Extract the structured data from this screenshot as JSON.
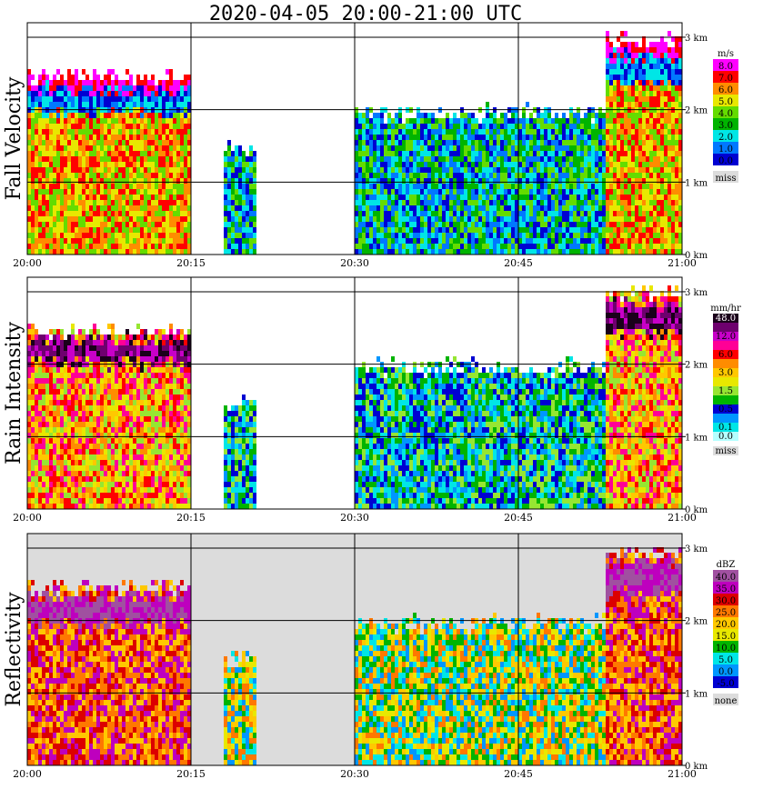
{
  "title": "2020-04-05   20:00-21:00 UTC",
  "chart_data": [
    {
      "type": "heatmap",
      "panel": "Fall Velocity",
      "x_tick_labels": [
        "20:00",
        "20:15",
        "20:30",
        "20:45",
        "21:00"
      ],
      "y_tick_labels": [
        "0 km",
        "1 km",
        "2 km",
        "3 km"
      ],
      "xlim": [
        "20:00",
        "21:00"
      ],
      "ylim_km": [
        0,
        3.2
      ],
      "grid": true,
      "legend": {
        "title": "m/s",
        "placement": "right",
        "entries": [
          {
            "label": "8.0",
            "color": "#ff00ff"
          },
          {
            "label": "7.0",
            "color": "#ff0000"
          },
          {
            "label": "6.0",
            "color": "#ff8c00"
          },
          {
            "label": "5.0",
            "color": "#e8e800"
          },
          {
            "label": "4.0",
            "color": "#64dc00"
          },
          {
            "label": "3.0",
            "color": "#00b400"
          },
          {
            "label": "2.0",
            "color": "#00e6e6"
          },
          {
            "label": "1.0",
            "color": "#0078ff"
          },
          {
            "label": "0.0",
            "color": "#0000d2"
          },
          {
            "label": "miss",
            "color": "#dcdcdc"
          }
        ]
      },
      "echo_segments": [
        {
          "start": "20:00",
          "end": "20:15",
          "top_km": 2.5
        },
        {
          "start": "20:18",
          "end": "20:21",
          "top_km": 1.5
        },
        {
          "start": "20:30",
          "end": "20:53",
          "top_km": 2.0
        },
        {
          "start": "20:53",
          "end": "21:00",
          "top_km": 3.0
        }
      ]
    },
    {
      "type": "heatmap",
      "panel": "Rain Intensity",
      "x_tick_labels": [
        "20:00",
        "20:15",
        "20:30",
        "20:45",
        "21:00"
      ],
      "y_tick_labels": [
        "0 km",
        "1 km",
        "2 km",
        "3 km"
      ],
      "xlim": [
        "20:00",
        "21:00"
      ],
      "ylim_km": [
        0,
        3.2
      ],
      "grid": true,
      "legend": {
        "title": "mm/hr",
        "placement": "right",
        "entries": [
          {
            "label": "48.0",
            "color": "#1a001a"
          },
          {
            "label": "",
            "color": "#6e006e"
          },
          {
            "label": "12.0",
            "color": "#c800c8"
          },
          {
            "label": "",
            "color": "#ff0096"
          },
          {
            "label": "6.0",
            "color": "#ff0000"
          },
          {
            "label": "",
            "color": "#ff8c00"
          },
          {
            "label": "3.0",
            "color": "#ffc800"
          },
          {
            "label": "",
            "color": "#e8e800"
          },
          {
            "label": "1.5",
            "color": "#96e632"
          },
          {
            "label": "",
            "color": "#00b400"
          },
          {
            "label": "0.5",
            "color": "#0000d2"
          },
          {
            "label": "",
            "color": "#0096ff"
          },
          {
            "label": "0.1",
            "color": "#00e6e6"
          },
          {
            "label": "0.0",
            "color": "#b4ffff"
          },
          {
            "label": "miss",
            "color": "#dcdcdc"
          }
        ]
      },
      "echo_segments": [
        {
          "start": "20:00",
          "end": "20:15",
          "top_km": 2.5
        },
        {
          "start": "20:18",
          "end": "20:21",
          "top_km": 1.5
        },
        {
          "start": "20:30",
          "end": "20:53",
          "top_km": 2.0
        },
        {
          "start": "20:53",
          "end": "21:00",
          "top_km": 3.0
        }
      ]
    },
    {
      "type": "heatmap",
      "panel": "Reflectivity",
      "x_tick_labels": [
        "20:00",
        "20:15",
        "20:30",
        "20:45",
        "21:00"
      ],
      "y_tick_labels": [
        "0 km",
        "1 km",
        "2 km",
        "3 km"
      ],
      "xlim": [
        "20:00",
        "21:00"
      ],
      "ylim_km": [
        0,
        3.2
      ],
      "grid": true,
      "legend": {
        "title": "dBZ",
        "placement": "right",
        "entries": [
          {
            "label": "40.0",
            "color": "#a050a0"
          },
          {
            "label": "35.0",
            "color": "#be00be"
          },
          {
            "label": "30.0",
            "color": "#dc0000"
          },
          {
            "label": "25.0",
            "color": "#ff7800"
          },
          {
            "label": "20.0",
            "color": "#ffc800"
          },
          {
            "label": "15.0",
            "color": "#e8e800"
          },
          {
            "label": "10.0",
            "color": "#00b400"
          },
          {
            "label": "5.0",
            "color": "#00e6e6"
          },
          {
            "label": "0.0",
            "color": "#0096ff"
          },
          {
            "label": "-5.0",
            "color": "#0000d2"
          },
          {
            "label": "none",
            "color": "#dcdcdc"
          }
        ]
      },
      "echo_segments": [
        {
          "start": "20:00",
          "end": "20:15",
          "top_km": 2.5
        },
        {
          "start": "20:18",
          "end": "20:21",
          "top_km": 1.5
        },
        {
          "start": "20:30",
          "end": "20:53",
          "top_km": 2.0
        },
        {
          "start": "20:53",
          "end": "21:00",
          "top_km": 3.0
        }
      ]
    }
  ]
}
